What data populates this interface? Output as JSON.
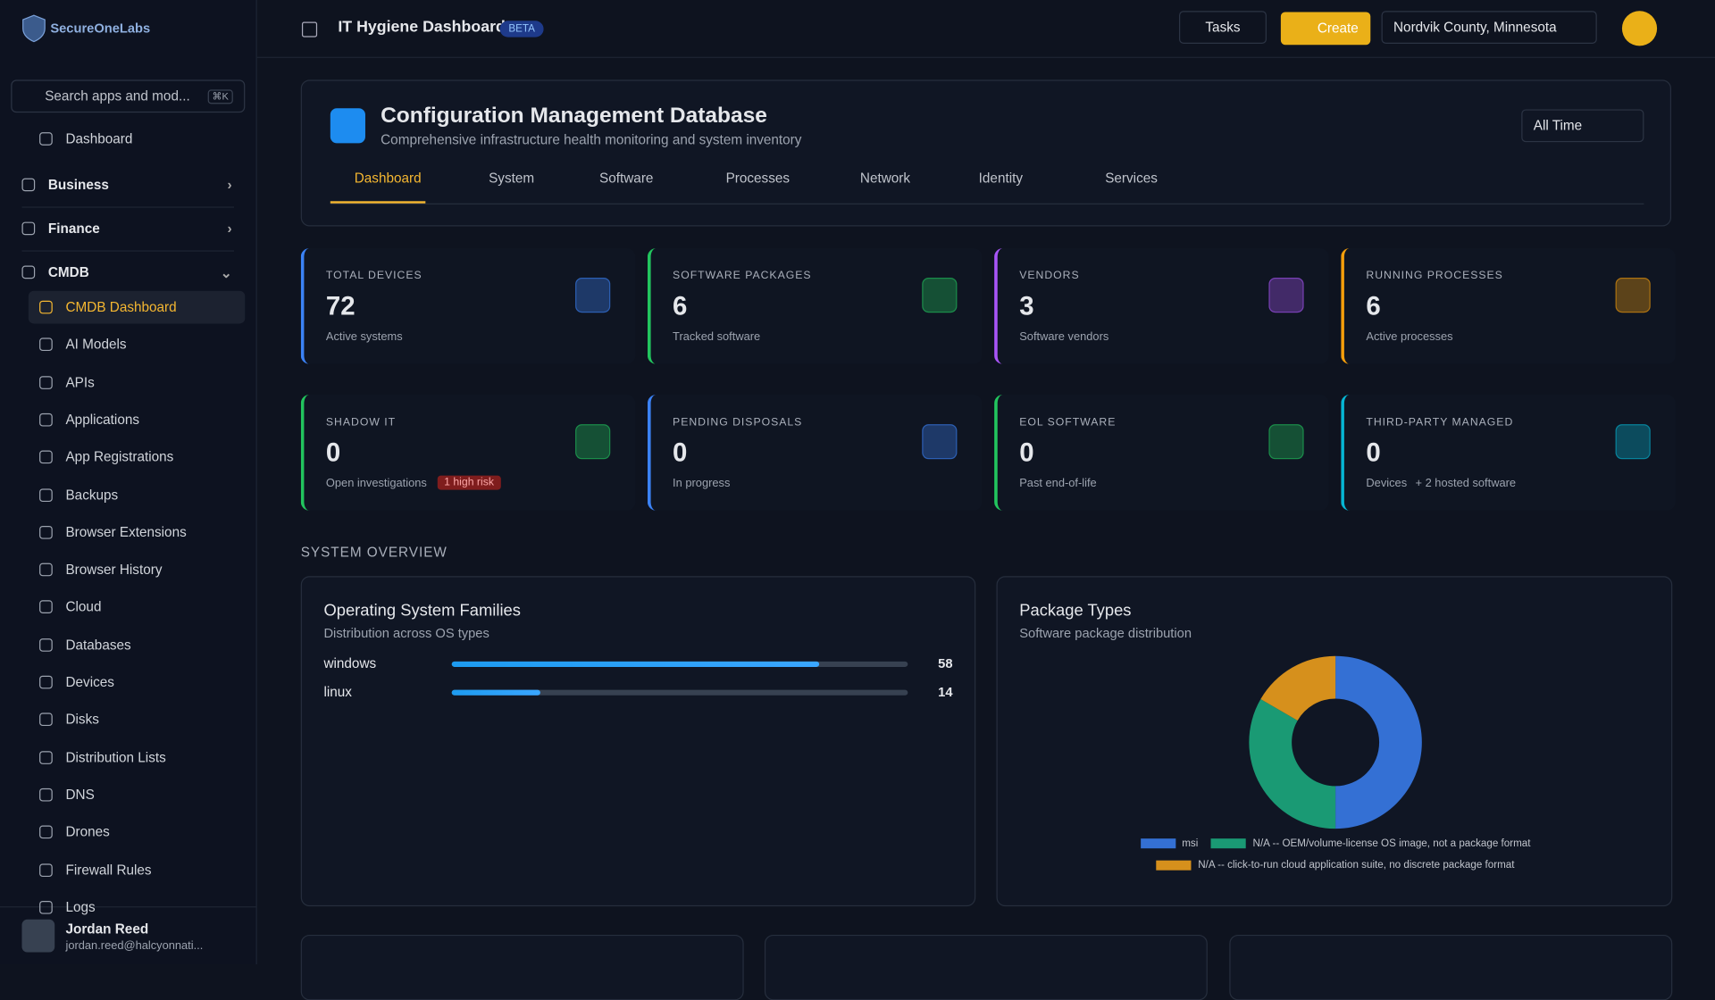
{
  "brand": "SecureOneLabs",
  "search": {
    "placeholder": "Search apps and mod...",
    "shortcut": "⌘K"
  },
  "nav": [
    {
      "label": "Dashboard",
      "kind": "top"
    },
    {
      "label": "Business",
      "kind": "section"
    },
    {
      "label": "Finance",
      "kind": "section"
    },
    {
      "label": "CMDB",
      "kind": "section-open"
    },
    {
      "label": "CMDB Dashboard",
      "kind": "active"
    },
    {
      "label": "AI Models",
      "kind": "item"
    },
    {
      "label": "APIs",
      "kind": "item"
    },
    {
      "label": "Applications",
      "kind": "item"
    },
    {
      "label": "App Registrations",
      "kind": "item"
    },
    {
      "label": "Backups",
      "kind": "item"
    },
    {
      "label": "Browser Extensions",
      "kind": "item"
    },
    {
      "label": "Browser History",
      "kind": "item"
    },
    {
      "label": "Cloud",
      "kind": "item"
    },
    {
      "label": "Databases",
      "kind": "item"
    },
    {
      "label": "Devices",
      "kind": "item"
    },
    {
      "label": "Disks",
      "kind": "item"
    },
    {
      "label": "Distribution Lists",
      "kind": "item"
    },
    {
      "label": "DNS",
      "kind": "item"
    },
    {
      "label": "Drones",
      "kind": "item"
    },
    {
      "label": "Firewall Rules",
      "kind": "item"
    },
    {
      "label": "Logs",
      "kind": "item"
    }
  ],
  "user": {
    "name": "Jordan Reed",
    "email": "jordan.reed@halcyonnati..."
  },
  "header": {
    "title": "IT Hygiene Dashboard",
    "badge": "BETA",
    "tasks": "Tasks",
    "create": "Create",
    "location": "Nordvik County, Minnesota"
  },
  "page": {
    "title": "Configuration Management Database",
    "subtitle": "Comprehensive infrastructure health monitoring and system inventory",
    "range": "All Time",
    "tabs": [
      "Dashboard",
      "System",
      "Software",
      "Processes",
      "Network",
      "Identity",
      "Services"
    ]
  },
  "stats": [
    {
      "label": "TOTAL DEVICES",
      "value": "72",
      "sub": "Active systems",
      "color": "#3b82f6"
    },
    {
      "label": "SOFTWARE PACKAGES",
      "value": "6",
      "sub": "Tracked software",
      "color": "#22c55e"
    },
    {
      "label": "VENDORS",
      "value": "3",
      "sub": "Software vendors",
      "color": "#a855f7"
    },
    {
      "label": "RUNNING PROCESSES",
      "value": "6",
      "sub": "Active processes",
      "color": "#f59e0b"
    },
    {
      "label": "SHADOW IT",
      "value": "0",
      "sub": "Open investigations",
      "badge": "1 high risk",
      "color": "#22c55e"
    },
    {
      "label": "PENDING DISPOSALS",
      "value": "0",
      "sub": "In progress",
      "color": "#3b82f6"
    },
    {
      "label": "EOL SOFTWARE",
      "value": "0",
      "sub": "Past end-of-life",
      "color": "#22c55e"
    },
    {
      "label": "THIRD-PARTY MANAGED",
      "value": "0",
      "sub": "Devices",
      "extra": "+ 2 hosted software",
      "color": "#06b6d4"
    }
  ],
  "section": "SYSTEM OVERVIEW",
  "chart_data": [
    {
      "type": "bar",
      "orientation": "horizontal",
      "title": "Operating System Families",
      "subtitle": "Distribution across OS types",
      "categories": [
        "windows",
        "linux"
      ],
      "values": [
        58,
        14
      ],
      "xlim": [
        0,
        72
      ],
      "color": "#1d9bf0"
    },
    {
      "type": "pie",
      "title": "Package Types",
      "subtitle": "Software package distribution",
      "donut": true,
      "categories": [
        "msi",
        "N/A -- OEM/volume-license OS image, not a package format",
        "N/A -- click-to-run cloud application suite, no discrete package format"
      ],
      "values": [
        3,
        2,
        1
      ],
      "colors": [
        "#3470d4",
        "#1a9a74",
        "#d6901c"
      ]
    }
  ]
}
